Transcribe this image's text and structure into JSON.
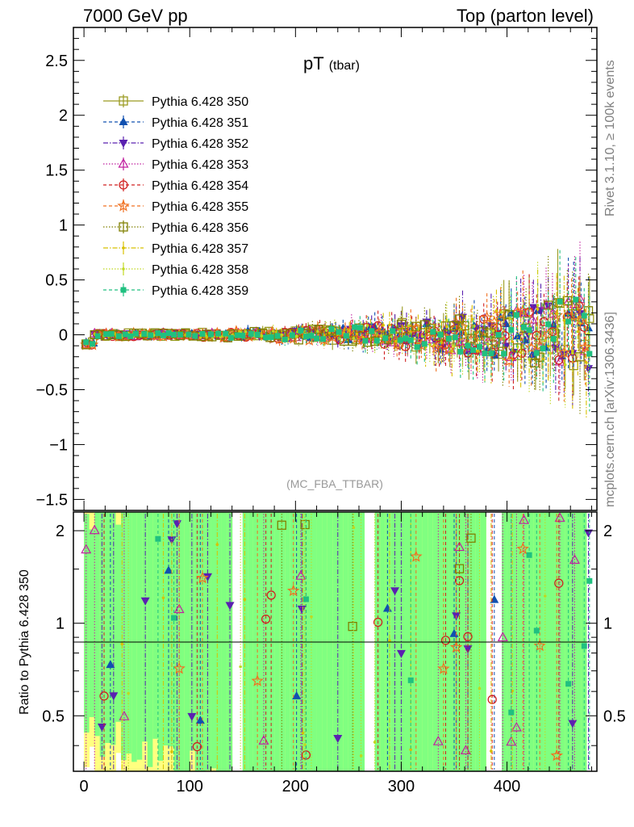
{
  "header": {
    "left": "7000 GeV pp",
    "right": "Top (parton level)"
  },
  "side_labels": {
    "rivet": "Rivet 3.1.10, ≥ 100k events",
    "mcplots": "mcplots.cern.ch [arXiv:1306.3436]"
  },
  "chart_data": {
    "type": "line",
    "title": "pT",
    "title_sub": "(tbar)",
    "watermark": "(MC_FBA_TTBAR)",
    "xlabel": "",
    "ylabel": "",
    "xlim": [
      -10,
      485
    ],
    "ylim": [
      -1.6,
      2.8
    ],
    "xticks": [
      "0",
      "100",
      "200",
      "300",
      "400"
    ],
    "xtick_values": [
      0,
      100,
      200,
      300,
      400
    ],
    "yticks": [
      "−1.5",
      "−1",
      "−0.5",
      "0",
      "0.5",
      "1",
      "1.5",
      "2",
      "2.5"
    ],
    "ytick_values": [
      -1.5,
      -1,
      -0.5,
      0,
      0.5,
      1,
      1.5,
      2,
      2.5
    ],
    "legend_position": "top-left",
    "grid": false,
    "series": [
      {
        "name": "Pythia 6.428 350",
        "color": "#9a9a20",
        "marker": "open-square",
        "dash": "solid"
      },
      {
        "name": "Pythia 6.428 351",
        "color": "#1050b0",
        "marker": "triangle-up",
        "dash": "dashed"
      },
      {
        "name": "Pythia 6.428 352",
        "color": "#5a20b0",
        "marker": "triangle-down",
        "dash": "dashdot"
      },
      {
        "name": "Pythia 6.428 353",
        "color": "#c020a0",
        "marker": "open-triangle",
        "dash": "dotted"
      },
      {
        "name": "Pythia 6.428 354",
        "color": "#d02020",
        "marker": "open-circle",
        "dash": "dashed"
      },
      {
        "name": "Pythia 6.428 355",
        "color": "#f07020",
        "marker": "open-star",
        "dash": "dashed"
      },
      {
        "name": "Pythia 6.428 356",
        "color": "#808000",
        "marker": "open-square",
        "dash": "dotted"
      },
      {
        "name": "Pythia 6.428 357",
        "color": "#d8c000",
        "marker": "dot",
        "dash": "dashdot"
      },
      {
        "name": "Pythia 6.428 358",
        "color": "#c0d820",
        "marker": "dot",
        "dash": "dotted"
      },
      {
        "name": "Pythia 6.428 359",
        "color": "#20c080",
        "marker": "filled-square",
        "dash": "dashed"
      }
    ],
    "ratio_panel": {
      "ylabel": "Ratio to Pythia 6.428 350",
      "ylim": [
        0.33,
        2.3
      ],
      "log_scale": true,
      "yticks": [
        "0.5",
        "1",
        "2"
      ],
      "ytick_values": [
        0.5,
        1,
        2
      ],
      "band_colors": {
        "outer": "#ffff80",
        "inner": "#80ff80"
      }
    }
  }
}
